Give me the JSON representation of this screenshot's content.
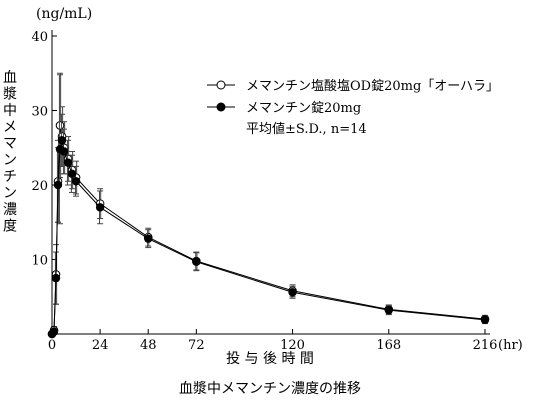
{
  "chart_data": {
    "type": "line",
    "title": "血漿中メマンチン濃度の推移",
    "ylabel": "血漿中メマンチン濃度",
    "yunit": "(ng/mL)",
    "xlabel": "投 与 後 時 間",
    "xunit": "(hr)",
    "xlim": [
      0,
      216
    ],
    "ylim": [
      0,
      40
    ],
    "x_tick_labels": [
      "0",
      "24",
      "48",
      "72",
      "120",
      "168",
      "216"
    ],
    "y_tick_labels": [
      "10",
      "20",
      "30",
      "40"
    ],
    "x_ticks": [
      0,
      24,
      48,
      72,
      120,
      168,
      216
    ],
    "y_ticks": [
      10,
      20,
      30,
      40
    ],
    "legend_note": "平均値±S.D., n=14",
    "legend_position": "top-right",
    "series": [
      {
        "name": "メマンチン塩酸塩OD錠20mg「オーハラ」",
        "marker": "open-circle",
        "x": [
          0,
          1,
          2,
          3,
          4,
          5,
          6,
          8,
          10,
          12,
          24,
          48,
          72,
          120,
          168,
          216
        ],
        "y": [
          0,
          0.5,
          8.0,
          20.5,
          28.0,
          26.5,
          25.0,
          23.5,
          22.0,
          21.0,
          17.5,
          13.0,
          9.8,
          5.8,
          3.3,
          2.0
        ],
        "err": [
          0,
          0.5,
          4.0,
          5.5,
          7.0,
          4.0,
          3.5,
          3.0,
          2.5,
          2.2,
          2.0,
          1.2,
          1.2,
          0.8,
          0.6,
          0.5
        ]
      },
      {
        "name": "メマンチン錠20mg",
        "marker": "filled-circle",
        "x": [
          0,
          1,
          2,
          3,
          4,
          5,
          6,
          8,
          10,
          12,
          24,
          48,
          72,
          120,
          168,
          216
        ],
        "y": [
          0,
          0.3,
          7.5,
          20.0,
          24.8,
          26.0,
          24.5,
          23.0,
          21.5,
          20.5,
          17.0,
          12.8,
          9.7,
          5.6,
          3.2,
          1.9
        ],
        "err": [
          0,
          0.4,
          3.5,
          5.0,
          10.0,
          3.5,
          3.0,
          3.0,
          2.5,
          2.0,
          2.2,
          1.2,
          1.2,
          0.8,
          0.6,
          0.5
        ]
      }
    ]
  }
}
